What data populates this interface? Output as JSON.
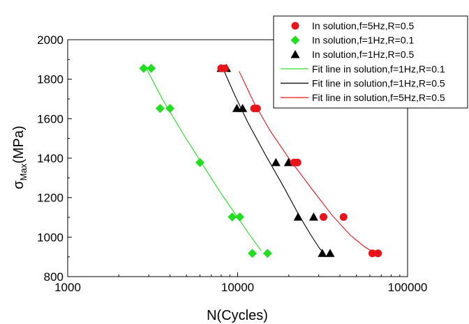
{
  "chart_data": {
    "type": "scatter",
    "xlabel": "N(Cycles)",
    "ylabel_main": "σ",
    "ylabel_sub": "Max",
    "ylabel_unit": "(MPa)",
    "x_scale": "log",
    "xlim": [
      1000,
      100000
    ],
    "ylim": [
      800,
      2000
    ],
    "x_ticks": [
      1000,
      10000,
      100000
    ],
    "x_tick_labels": [
      "1000",
      "10000",
      "100000"
    ],
    "y_ticks": [
      800,
      1000,
      1200,
      1400,
      1600,
      1800,
      2000
    ],
    "y_tick_labels": [
      "800",
      "1000",
      "1200",
      "1400",
      "1600",
      "1800",
      "2000"
    ],
    "grid": false,
    "legend_position": "top-right",
    "series": [
      {
        "name": "In solution,f=5Hz,R=0.5",
        "marker": "circle",
        "color": "#e8141a",
        "points": [
          {
            "x": 8000,
            "y": 1855
          },
          {
            "x": 8400,
            "y": 1855
          },
          {
            "x": 12500,
            "y": 1652
          },
          {
            "x": 13000,
            "y": 1652
          },
          {
            "x": 21500,
            "y": 1378
          },
          {
            "x": 22500,
            "y": 1378
          },
          {
            "x": 32000,
            "y": 1102
          },
          {
            "x": 42000,
            "y": 1102
          },
          {
            "x": 62000,
            "y": 918
          },
          {
            "x": 67000,
            "y": 918
          }
        ]
      },
      {
        "name": "In solution,f=1Hz,R=0.1",
        "marker": "diamond",
        "color": "#22dd22",
        "points": [
          {
            "x": 2800,
            "y": 1855
          },
          {
            "x": 3100,
            "y": 1855
          },
          {
            "x": 3500,
            "y": 1652
          },
          {
            "x": 4000,
            "y": 1652
          },
          {
            "x": 6000,
            "y": 1378
          },
          {
            "x": 9300,
            "y": 1102
          },
          {
            "x": 10300,
            "y": 1102
          },
          {
            "x": 12200,
            "y": 918
          },
          {
            "x": 15000,
            "y": 918
          }
        ]
      },
      {
        "name": "In solution,f=1Hz,R=0.5",
        "marker": "triangle",
        "color": "#000000",
        "points": [
          {
            "x": 8000,
            "y": 1855
          },
          {
            "x": 8600,
            "y": 1855
          },
          {
            "x": 9900,
            "y": 1652
          },
          {
            "x": 10700,
            "y": 1652
          },
          {
            "x": 16800,
            "y": 1378
          },
          {
            "x": 19900,
            "y": 1378
          },
          {
            "x": 22700,
            "y": 1102
          },
          {
            "x": 28000,
            "y": 1102
          },
          {
            "x": 31500,
            "y": 918
          },
          {
            "x": 35000,
            "y": 918
          }
        ]
      }
    ],
    "fit_lines": [
      {
        "name": "Fit line in solution,f=1Hz,R=0.1",
        "color": "#22dd22",
        "points": [
          {
            "x": 2900,
            "y": 1855
          },
          {
            "x": 3600,
            "y": 1700
          },
          {
            "x": 4800,
            "y": 1520
          },
          {
            "x": 6300,
            "y": 1360
          },
          {
            "x": 8000,
            "y": 1220
          },
          {
            "x": 10000,
            "y": 1100
          },
          {
            "x": 11800,
            "y": 1010
          },
          {
            "x": 13000,
            "y": 960
          },
          {
            "x": 13800,
            "y": 930
          }
        ]
      },
      {
        "name": "Fit line in solution,f=1Hz,R=0.5",
        "color": "#000000",
        "points": [
          {
            "x": 8200,
            "y": 1855
          },
          {
            "x": 9600,
            "y": 1720
          },
          {
            "x": 11500,
            "y": 1580
          },
          {
            "x": 14500,
            "y": 1420
          },
          {
            "x": 18500,
            "y": 1260
          },
          {
            "x": 23000,
            "y": 1110
          },
          {
            "x": 27000,
            "y": 1010
          },
          {
            "x": 30500,
            "y": 940
          },
          {
            "x": 32500,
            "y": 918
          }
        ]
      },
      {
        "name": "Fit line in solution,f=5Hz,R=0.5",
        "color": "#e8141a",
        "points": [
          {
            "x": 10200,
            "y": 1840
          },
          {
            "x": 12500,
            "y": 1680
          },
          {
            "x": 15500,
            "y": 1540
          },
          {
            "x": 20000,
            "y": 1400
          },
          {
            "x": 27000,
            "y": 1250
          },
          {
            "x": 36000,
            "y": 1110
          },
          {
            "x": 46000,
            "y": 1010
          },
          {
            "x": 56000,
            "y": 950
          },
          {
            "x": 65000,
            "y": 918
          }
        ]
      }
    ]
  }
}
